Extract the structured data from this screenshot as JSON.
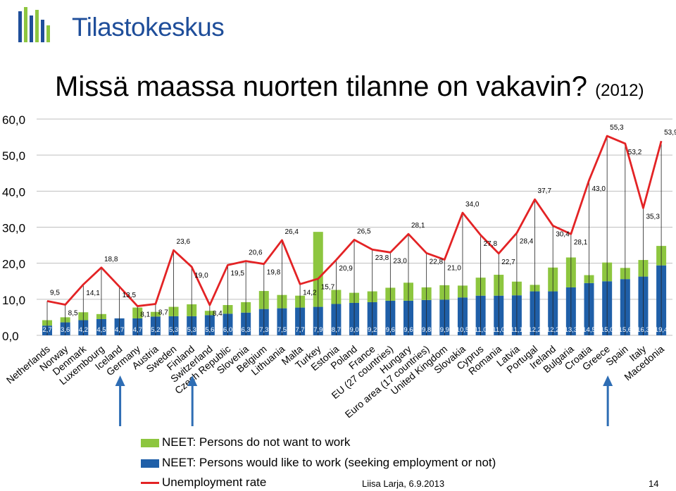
{
  "header": {
    "logo_text": "Tilastokeskus",
    "title": "Missä maassa nuorten tilanne on vakavin?",
    "title_year": "(2012)"
  },
  "colors": {
    "green": "#8dc63f",
    "blue": "#1f5fa8",
    "red": "#e32325",
    "logo_blue": "#1f4e9a",
    "logo_green": "#8dc63f",
    "arrow": "#2e6db4"
  },
  "legend": {
    "green": "NEET: Persons do not want to work",
    "blue": "NEET: Persons would like to work (seeking employment or not)",
    "red": "Unemployment rate"
  },
  "footer": {
    "author": "Liisa Larja, 6.9.2013",
    "page": "14"
  },
  "chart_data": {
    "type": "bar",
    "stacked": true,
    "ylim": [
      0,
      60
    ],
    "yticks": [
      "0,0",
      "10,0",
      "20,0",
      "30,0",
      "40,0",
      "50,0",
      "60,0"
    ],
    "grid": true,
    "categories": [
      "Netherlands",
      "Norway",
      "Denmark",
      "Luxembourg",
      "Iceland",
      "Germany",
      "Austria",
      "Sweden",
      "Finland",
      "Switzerland",
      "Czech Republic",
      "Slovenia",
      "Belgium",
      "Lithuania",
      "Malta",
      "Turkey",
      "Estonia",
      "Poland",
      "France",
      "EU (27 countries)",
      "Hungary",
      "Euro area (17 countries)",
      "United Kingdom",
      "Slovakia",
      "Cyprus",
      "Romania",
      "Latvia",
      "Portugal",
      "Ireland",
      "Bulgaria",
      "Croatia",
      "Greece",
      "Spain",
      "Italy",
      "Macedonia"
    ],
    "series": [
      {
        "name": "NEET: Persons would like to work (seeking employment or not)",
        "kind": "bar",
        "values": [
          2.7,
          3.6,
          4.2,
          4.5,
          4.7,
          4.7,
          5.2,
          5.3,
          5.3,
          5.6,
          6.0,
          6.3,
          7.3,
          7.5,
          7.7,
          7.9,
          8.7,
          9.0,
          9.2,
          9.6,
          9.6,
          9.8,
          9.9,
          10.5,
          11.0,
          11.0,
          11.1,
          12.2,
          12.2,
          13.3,
          14.5,
          15.0,
          15.6,
          16.3,
          19.4
        ],
        "labels": [
          "2,7",
          "3,6",
          "4,2",
          "4,5",
          "4,7",
          "4,7",
          "5,2",
          "5,3",
          "5,3",
          "5,6",
          "6,0",
          "6,3",
          "7,3",
          "7,5",
          "7,7",
          "7,9",
          "8,7",
          "9,0",
          "9,2",
          "9,6",
          "9,6",
          "9,8",
          "9,9",
          "10,5",
          "11,0",
          "11,0",
          "11,1",
          "12,2",
          "12,2",
          "13,3",
          "14,5",
          "15,0",
          "15,6",
          "16,3",
          "19,4"
        ]
      },
      {
        "name": "NEET: Persons do not want to work",
        "kind": "bar",
        "values": [
          1.5,
          1.4,
          2.2,
          1.4,
          0,
          3.0,
          1.3,
          2.6,
          3.3,
          1.2,
          2.4,
          2.9,
          5.0,
          3.7,
          3.3,
          20.8,
          3.9,
          2.8,
          3.0,
          3.6,
          5.0,
          3.5,
          4.0,
          3.3,
          5.0,
          5.8,
          3.8,
          1.8,
          6.6,
          8.3,
          2.2,
          5.2,
          3.1,
          4.6,
          5.4
        ]
      },
      {
        "name": "Unemployment rate",
        "kind": "line",
        "values": [
          9.5,
          8.5,
          14.1,
          18.8,
          13.5,
          8.1,
          8.7,
          23.6,
          19.0,
          8.4,
          19.5,
          20.6,
          19.8,
          26.4,
          14.2,
          15.7,
          20.9,
          26.5,
          23.8,
          23.0,
          28.1,
          22.8,
          21.0,
          34.0,
          27.8,
          22.7,
          28.4,
          37.7,
          30.4,
          28.1,
          43.0,
          55.3,
          53.2,
          35.3,
          53.9
        ],
        "labels": [
          "9,5",
          "8,5",
          "14,1",
          "18,8",
          "13,5",
          "8,1",
          "8,7",
          "23,6",
          "19,0",
          "8,4",
          "19,5",
          "20,6",
          "19,8",
          "26,4",
          "14,2",
          "15,7",
          "20,9",
          "26,5",
          "23,8",
          "23,0",
          "28,1",
          "22,8",
          "21,0",
          "34,0",
          "27,8",
          "22,7",
          "28,4",
          "37,7",
          "30,4",
          "28,1",
          "43,0",
          "55,3",
          "53,2",
          "35,3",
          "53,9"
        ]
      }
    ],
    "highlighted_categories": [
      "Iceland",
      "Finland",
      "Greece"
    ]
  }
}
